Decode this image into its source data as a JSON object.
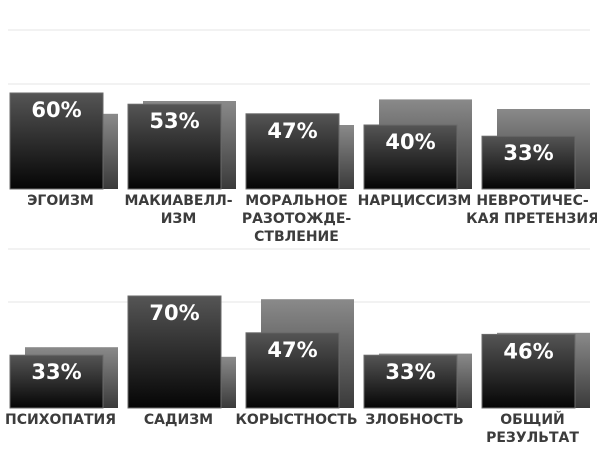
{
  "chart_data": [
    {
      "type": "bar",
      "categories": [
        [
          "ЭГОИЗМ"
        ],
        [
          "МАКИАВЕЛЛ-",
          "ИЗМ"
        ],
        [
          "МОРАЛЬНОЕ",
          "РАЗОТОЖДЕ-",
          "СТВЛЕНИЕ"
        ],
        [
          "НАРЦИССИЗМ"
        ],
        [
          "НЕВРОТИЧЕС-",
          "КАЯ ПРЕТЕНЗИЯ"
        ]
      ],
      "values": [
        60,
        53,
        47,
        40,
        33
      ],
      "value_labels": [
        "60%",
        "53%",
        "47%",
        "40%",
        "33%"
      ],
      "reference_values": [
        47,
        55,
        40,
        56,
        50
      ],
      "ylim": [
        0,
        100
      ]
    },
    {
      "type": "bar",
      "categories": [
        [
          "ПСИХОПАТИЯ"
        ],
        [
          "САДИЗМ"
        ],
        [
          "КОРЫСТНОСТЬ"
        ],
        [
          "ЗЛОБНОСТЬ"
        ],
        [
          "ОБЩИЙ",
          "РЕЗУЛЬТАТ"
        ]
      ],
      "values": [
        33,
        70,
        47,
        33,
        46
      ],
      "value_labels": [
        "33%",
        "70%",
        "47%",
        "33%",
        "46%"
      ],
      "reference_values": [
        38,
        32,
        68,
        34,
        47
      ],
      "ylim": [
        0,
        100
      ]
    }
  ],
  "colors": {
    "front_top": "#555555",
    "front_bottom": "#050505",
    "back_top": "#8a8a8a",
    "back_bottom": "#3a3a3a",
    "grid": "#e6e6e6",
    "label": "#3c3c3c"
  }
}
